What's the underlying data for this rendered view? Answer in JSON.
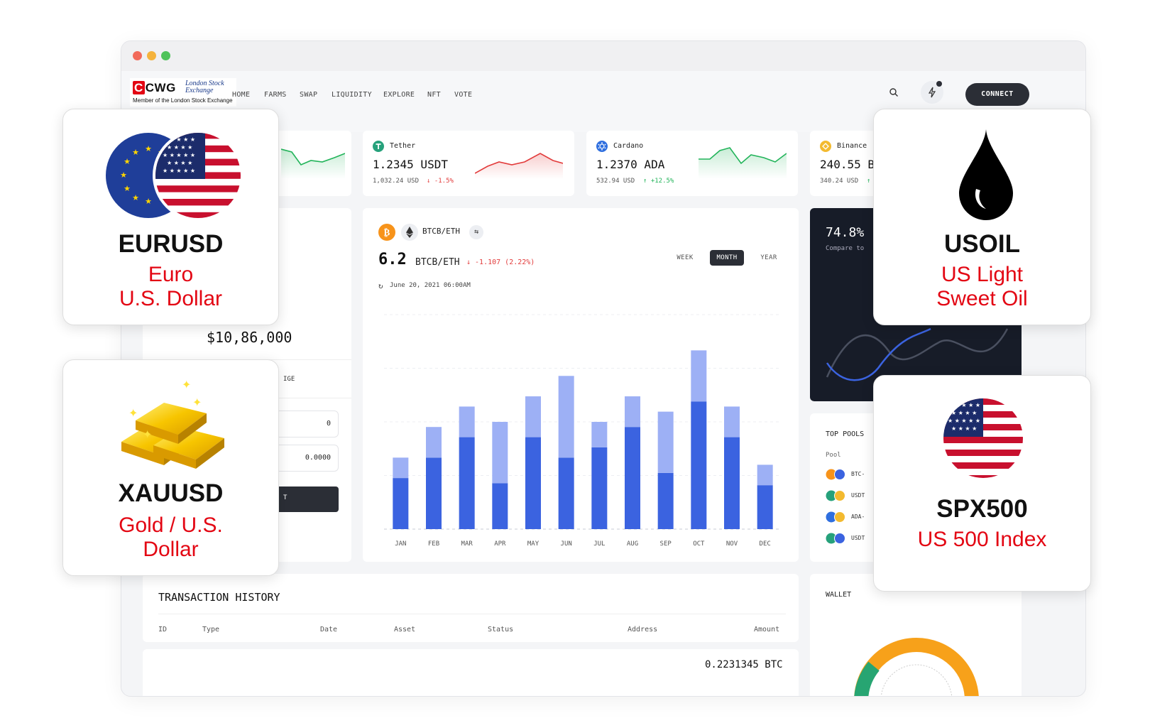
{
  "nav": {
    "logo_main": "CWG",
    "logo_lse": "London Stock Exchange",
    "logo_sub": "Member of the London Stock Exchange",
    "menu": [
      "HOME",
      "FARMS",
      "SWAP",
      "LIQUIDITY",
      "EXPLORE",
      "NFT",
      "VOTE"
    ],
    "connect_label": "CONNECT"
  },
  "tickers": [
    {
      "name": "Tether",
      "price": "1.2345 USDT",
      "usd": "1,032.24 USD",
      "change": "-1.5%",
      "direction": "down",
      "color": "#e23b3b"
    },
    {
      "name": "Cardano",
      "price": "1.2370 ADA",
      "usd": "532.94 USD",
      "change": "+12.5%",
      "direction": "up",
      "color": "#22b45a"
    },
    {
      "name": "Binance",
      "price": "240.55 B",
      "usd": "340.24 USD",
      "change": "",
      "direction": "up",
      "color": "#22b45a"
    }
  ],
  "left_panel": {
    "balance": "$10,86,000",
    "tab_fragment": "IGE",
    "input_1": "0",
    "input_2": "0.0000",
    "button_fragment": "T"
  },
  "main_chart": {
    "pair": "BTCB/ETH",
    "value": "6.2",
    "value_unit": "BTCB/ETH",
    "change": "↓ -1.107 (2.22%)",
    "timestamp": "June 20, 2021 06:00AM",
    "tabs": [
      "WEEK",
      "MONTH",
      "YEAR"
    ],
    "active_tab": "MONTH"
  },
  "chart_data": {
    "type": "bar",
    "stacked": true,
    "categories": [
      "JAN",
      "FEB",
      "MAR",
      "APR",
      "MAY",
      "JUN",
      "JUL",
      "AUG",
      "SEP",
      "OCT",
      "NOV",
      "DEC"
    ],
    "series": [
      {
        "name": "",
        "color": "#3b63e0",
        "values": [
          50,
          70,
          90,
          45,
          90,
          70,
          80,
          100,
          55,
          125,
          90,
          43
        ]
      },
      {
        "name": "",
        "color": "#9db0f5",
        "values": [
          20,
          30,
          30,
          60,
          40,
          80,
          25,
          30,
          60,
          50,
          30,
          20
        ]
      }
    ],
    "ylim": [
      0,
      210
    ],
    "grid": true
  },
  "dark_card": {
    "value": "74.8%",
    "sub": "Compare to"
  },
  "top_pools": {
    "title": "TOP POOLS",
    "header": "Pool",
    "rows": [
      "BTC-",
      "USDT",
      "ADA-",
      "USDT"
    ]
  },
  "transactions": {
    "title": "TRANSACTION HISTORY",
    "columns": [
      "ID",
      "Type",
      "Date",
      "Asset",
      "Status",
      "Address",
      "Amount"
    ],
    "first_amount": "0.2231345 BTC"
  },
  "wallet": {
    "title": "WALLET"
  },
  "overlays": [
    {
      "code": "EURUSD",
      "desc_1": "Euro",
      "desc_2": "U.S. Dollar"
    },
    {
      "code": "XAUUSD",
      "desc_1": "Gold / U.S.",
      "desc_2": "Dollar"
    },
    {
      "code": "USOIL",
      "desc_1": "US Light",
      "desc_2": "Sweet Oil"
    },
    {
      "code": "SPX500",
      "desc_1": "US 500 Index",
      "desc_2": ""
    }
  ],
  "colors": {
    "accent_dark": "#2b2e36",
    "bar_dark": "#3b63e0",
    "bar_light": "#9db0f5",
    "negative": "#e23b3b",
    "positive": "#22b45a",
    "overlay_red": "#e30613",
    "wallet_orange": "#f7a11a",
    "wallet_green": "#27a572"
  }
}
